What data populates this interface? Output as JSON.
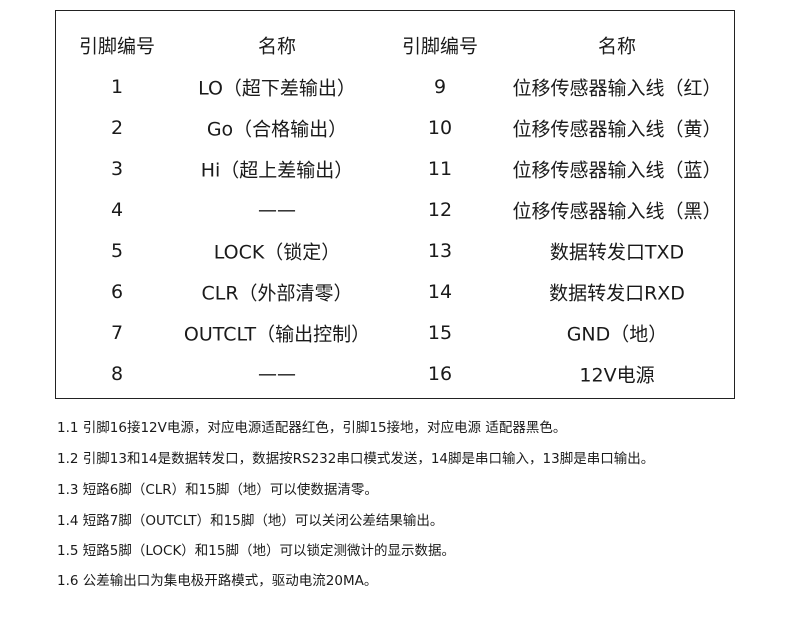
{
  "table": {
    "headers": [
      "引脚编号",
      "名称",
      "引脚编号",
      "名称"
    ],
    "rows": [
      [
        "1",
        "LO（超下差输出）",
        "9",
        "位移传感器输入线（红）"
      ],
      [
        "2",
        "Go（合格输出）",
        "10",
        "位移传感器输入线（黄）"
      ],
      [
        "3",
        "Hi（超上差输出）",
        "11",
        "位移传感器输入线（蓝）"
      ],
      [
        "4",
        "——",
        "12",
        "位移传感器输入线（黑）"
      ],
      [
        "5",
        "LOCK（锁定）",
        "13",
        "数据转发口TXD"
      ],
      [
        "6",
        "CLR（外部清零）",
        "14",
        "数据转发口RXD"
      ],
      [
        "7",
        "OUTCLT（输出控制）",
        "15",
        "GND（地）"
      ],
      [
        "8",
        "——",
        "16",
        "12V电源"
      ]
    ]
  },
  "notes": [
    "1.1 引脚16接12V电源，对应电源适配器红色，引脚15接地，对应电源 适配器黑色。",
    "1.2 引脚13和14是数据转发口，数据按RS232串口模式发送，14脚是串口输入，13脚是串口输出。",
    "1.3 短路6脚（CLR）和15脚（地）可以使数据清零。",
    "1.4 短路7脚（OUTCLT）和15脚（地）可以关闭公差结果输出。",
    "1.5 短路5脚（LOCK）和15脚（地）可以锁定测微计的显示数据。",
    "1.6 公差输出口为集电极开路模式，驱动电流20MA。"
  ]
}
